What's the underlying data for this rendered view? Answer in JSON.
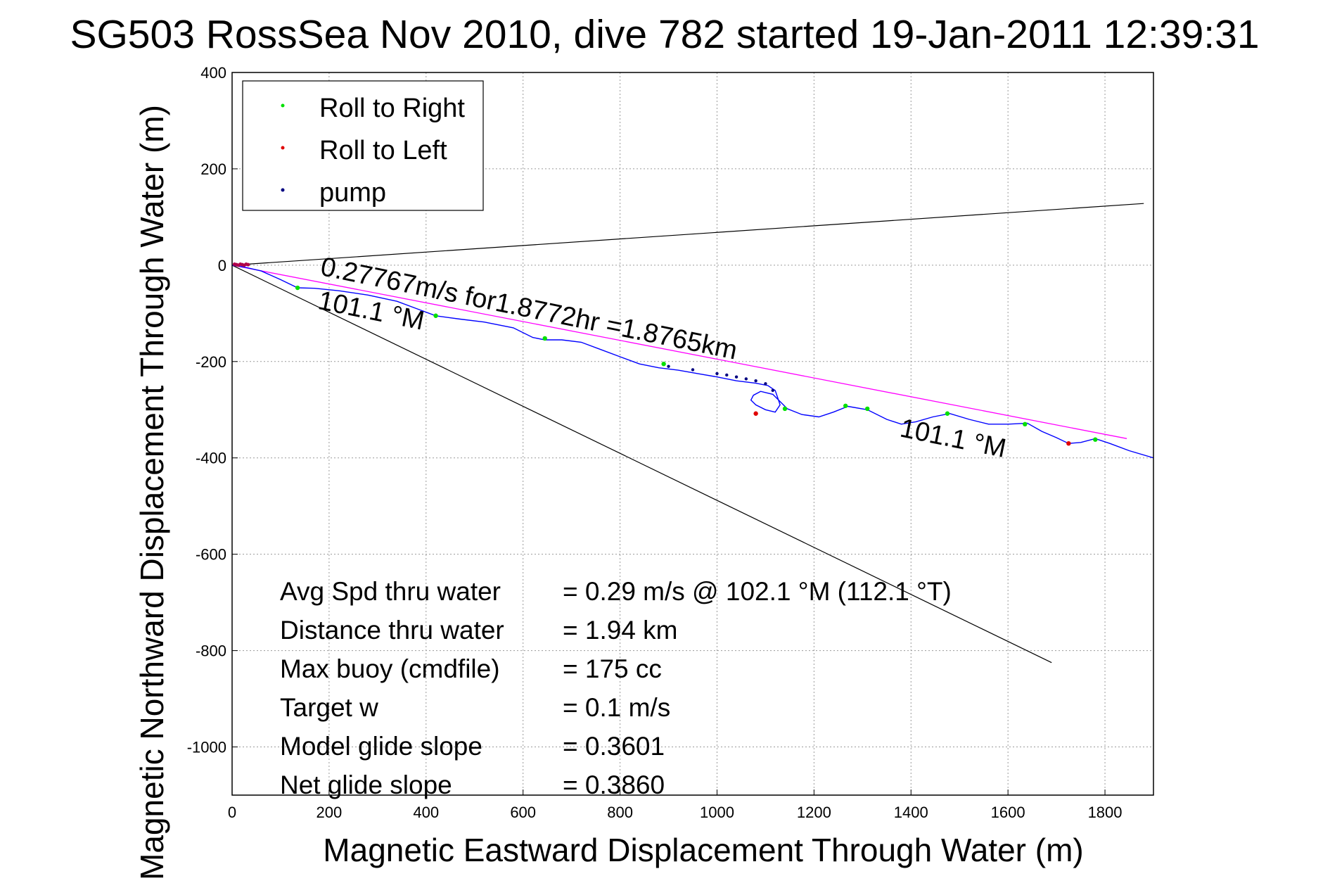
{
  "chart_data": {
    "type": "line",
    "title": "SG503 RossSea Nov 2010, dive 782 started 19-Jan-2011 12:39:31",
    "xlabel": "Magnetic Eastward Displacement Through Water (m)",
    "ylabel": "Magnetic Northward Displacement Through Water (m)",
    "xlim": [
      0,
      1900
    ],
    "ylim": [
      -1100,
      400
    ],
    "xticks": [
      0,
      200,
      400,
      600,
      800,
      1000,
      1200,
      1400,
      1600,
      1800
    ],
    "yticks": [
      400,
      200,
      0,
      -200,
      -400,
      -600,
      -800,
      -1000
    ],
    "grid": true,
    "legend": {
      "placement": "top-left",
      "entries": [
        {
          "name": "Roll to Right",
          "color": "#00e000"
        },
        {
          "name": "Roll to Left",
          "color": "#e00000"
        },
        {
          "name": "pump",
          "color": "#000080"
        }
      ]
    },
    "colors": {
      "track": "#0000ff",
      "heading_line": "#ff00ff",
      "bounds": "#000000"
    },
    "track": {
      "x": [
        0,
        30,
        60,
        100,
        135,
        170,
        220,
        280,
        340,
        380,
        420,
        470,
        520,
        580,
        620,
        645,
        680,
        720,
        760,
        800,
        840,
        880,
        920,
        960,
        1000,
        1040,
        1080,
        1105,
        1120,
        1125,
        1130,
        1120,
        1100,
        1080,
        1070,
        1075,
        1090,
        1115,
        1145,
        1175,
        1210,
        1240,
        1270,
        1310,
        1350,
        1380,
        1410,
        1445,
        1480,
        1520,
        1560,
        1600,
        1640,
        1670,
        1700,
        1725,
        1750,
        1780,
        1810,
        1850,
        1900
      ],
      "y": [
        0,
        -5,
        -12,
        -30,
        -47,
        -48,
        -53,
        -62,
        -75,
        -90,
        -105,
        -112,
        -118,
        -130,
        -150,
        -155,
        -155,
        -160,
        -175,
        -190,
        -205,
        -213,
        -218,
        -225,
        -232,
        -240,
        -245,
        -250,
        -260,
        -275,
        -290,
        -305,
        -300,
        -290,
        -280,
        -270,
        -262,
        -268,
        -298,
        -310,
        -315,
        -305,
        -293,
        -300,
        -320,
        -330,
        -325,
        -315,
        -308,
        -320,
        -330,
        -330,
        -328,
        -345,
        -358,
        -370,
        -368,
        -360,
        -370,
        -385,
        -400
      ]
    },
    "roll_right_points": {
      "x": [
        135,
        420,
        645,
        890,
        1140,
        1265,
        1310,
        1475,
        1635,
        1780
      ],
      "y": [
        -47,
        -105,
        -152,
        -205,
        -298,
        -292,
        -298,
        -308,
        -330,
        -362
      ]
    },
    "roll_left_points": {
      "x": [
        1080,
        1725
      ],
      "y": [
        -308,
        -370
      ]
    },
    "pump_points": {
      "x": [
        900,
        950,
        1000,
        1020,
        1040,
        1060,
        1080,
        1100,
        1115
      ],
      "y": [
        -210,
        -217,
        -225,
        -228,
        -232,
        -236,
        -240,
        -246,
        -260
      ]
    },
    "heading_line": {
      "x": [
        0,
        1845
      ],
      "y": [
        0,
        -360
      ]
    },
    "bound_lines": [
      {
        "x": [
          0,
          1880
        ],
        "y": [
          0,
          128
        ]
      },
      {
        "x": [
          0,
          1690
        ],
        "y": [
          0,
          -825
        ]
      }
    ],
    "annotations": [
      {
        "text": "0.27767m/s for1.8772hr =1.8765km",
        "x": 180,
        "y": -20,
        "angle": 11.5
      },
      {
        "text": "101.1 °M",
        "x": 175,
        "y": -90,
        "angle": 11.5
      },
      {
        "text": "101.1 °M",
        "x": 1375,
        "y": -355,
        "angle": 11.5
      }
    ],
    "stats": [
      {
        "label": "Avg Spd thru water",
        "value": "=  0.29 m/s @ 102.1 °M (112.1 °T)"
      },
      {
        "label": "Distance thru water",
        "value": "=  1.94 km"
      },
      {
        "label": "Max buoy (cmdfile)",
        "value": "= 175 cc"
      },
      {
        "label": "Target w",
        "value": "= 0.1 m/s"
      },
      {
        "label": "Model glide slope",
        "value": "= 0.3601"
      },
      {
        "label": "Net glide slope",
        "value": "= 0.3860"
      }
    ]
  }
}
